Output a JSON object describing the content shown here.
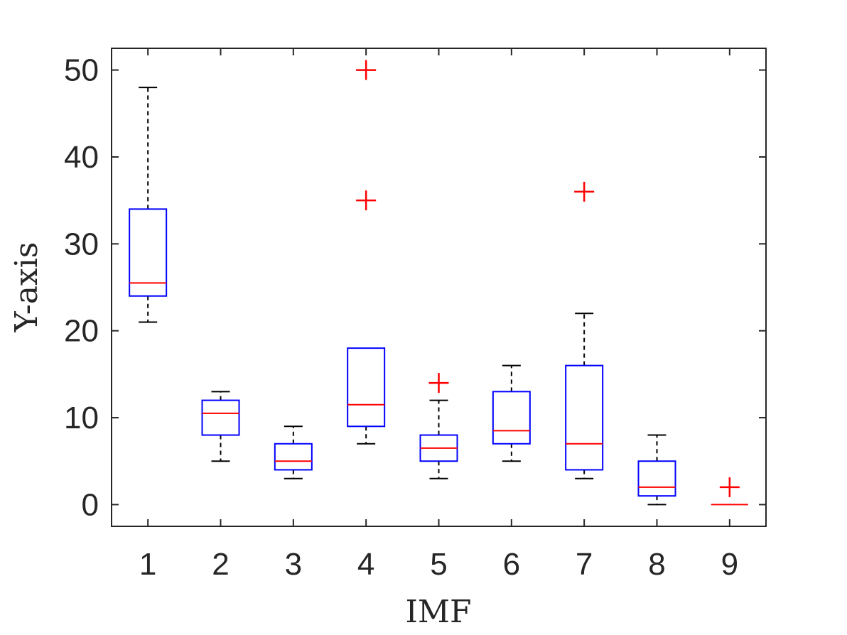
{
  "chart_data": {
    "type": "boxplot",
    "title": "",
    "xlabel": "IMF",
    "ylabel": "Y-axis",
    "ylim": [
      -2.5,
      52.5
    ],
    "yticks": [
      0,
      10,
      20,
      30,
      40,
      50
    ],
    "grid": false,
    "categories": [
      "1",
      "2",
      "3",
      "4",
      "5",
      "6",
      "7",
      "8",
      "9"
    ],
    "boxes": [
      {
        "category": "1",
        "whisker_low": 21,
        "q1": 24,
        "median": 25.5,
        "q3": 34,
        "whisker_high": 48,
        "outliers": []
      },
      {
        "category": "2",
        "whisker_low": 5,
        "q1": 8,
        "median": 10.5,
        "q3": 12,
        "whisker_high": 13,
        "outliers": []
      },
      {
        "category": "3",
        "whisker_low": 3,
        "q1": 4,
        "median": 5,
        "q3": 7,
        "whisker_high": 9,
        "outliers": []
      },
      {
        "category": "4",
        "whisker_low": 7,
        "q1": 9,
        "median": 11.5,
        "q3": 18,
        "whisker_high": 18,
        "outliers": [
          35,
          50
        ]
      },
      {
        "category": "5",
        "whisker_low": 3,
        "q1": 5,
        "median": 6.5,
        "q3": 8,
        "whisker_high": 12,
        "outliers": [
          14
        ]
      },
      {
        "category": "6",
        "whisker_low": 5,
        "q1": 7,
        "median": 8.5,
        "q3": 13,
        "whisker_high": 16,
        "outliers": []
      },
      {
        "category": "7",
        "whisker_low": 3,
        "q1": 4,
        "median": 7,
        "q3": 16,
        "whisker_high": 22,
        "outliers": [
          36
        ]
      },
      {
        "category": "8",
        "whisker_low": 0,
        "q1": 1,
        "median": 2,
        "q3": 5,
        "whisker_high": 8,
        "outliers": []
      },
      {
        "category": "9",
        "whisker_low": 0,
        "q1": 0,
        "median": 0,
        "q3": 0,
        "whisker_high": 0,
        "outliers": [
          2
        ]
      }
    ],
    "colors": {
      "box": "#0000ff",
      "median": "#ff0000",
      "whisker": "#000000",
      "outlier": "#ff0000",
      "axis": "#262626"
    }
  }
}
